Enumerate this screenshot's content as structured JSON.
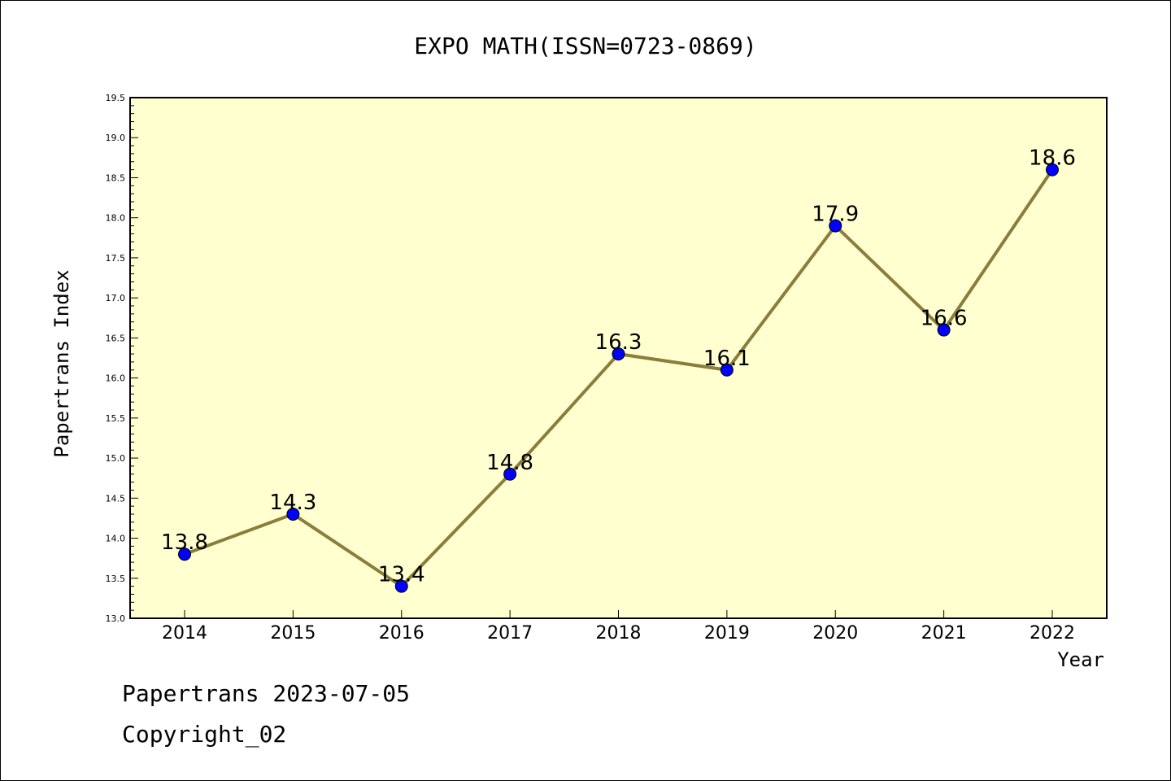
{
  "chart_data": {
    "type": "line",
    "title": "EXPO MATH(ISSN=0723-0869)",
    "xlabel": "Year",
    "ylabel": "Papertrans Index",
    "categories": [
      "2014",
      "2015",
      "2016",
      "2017",
      "2018",
      "2019",
      "2020",
      "2021",
      "2022"
    ],
    "values": [
      13.8,
      14.3,
      13.4,
      14.8,
      16.3,
      16.1,
      17.9,
      16.6,
      18.6
    ],
    "data_labels": [
      "13.8",
      "14.3",
      "13.4",
      "14.8",
      "16.3",
      "16.1",
      "17.9",
      "16.6",
      "18.6"
    ],
    "ylim": [
      13.0,
      19.5
    ],
    "yticks": [
      "13.0",
      "13.5",
      "14.0",
      "14.5",
      "15.0",
      "15.5",
      "16.0",
      "16.5",
      "17.0",
      "17.5",
      "18.0",
      "18.5",
      "19.0",
      "19.5"
    ],
    "grid": false,
    "colors": {
      "plot_background": "#ffffd0",
      "line": "#8b7d3a",
      "marker": "#0000ff"
    }
  },
  "footer": {
    "line1": "Papertrans 2023-07-05",
    "line2": "Copyright_02"
  }
}
